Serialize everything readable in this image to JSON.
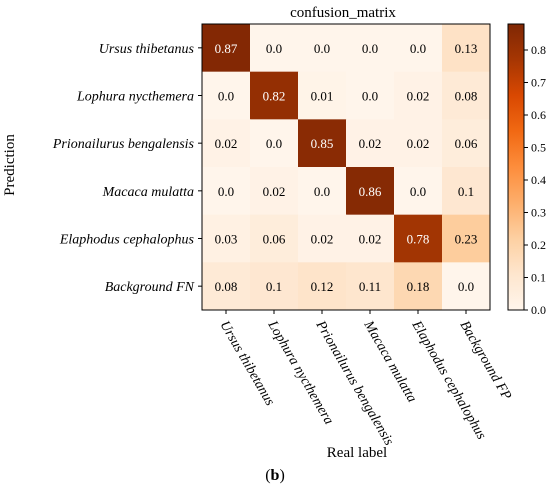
{
  "chart_data": {
    "type": "heatmap",
    "title": "confusion_matrix",
    "xlabel": "Real label",
    "ylabel": "Prediction",
    "x_categories": [
      "Ursus thibetanus",
      "Lophura nycthemera",
      "Prionailurus bengalensis",
      "Macaca mulatta",
      "Elaphodus cephalophus",
      "Background FP"
    ],
    "y_categories": [
      "Ursus thibetanus",
      "Lophura nycthemera",
      "Prionailurus bengalensis",
      "Macaca mulatta",
      "Elaphodus cephalophus",
      "Background FN"
    ],
    "values": [
      [
        "0.87",
        "0.0",
        "0.0",
        "0.0",
        "0.0",
        "0.13"
      ],
      [
        "0.0",
        "0.82",
        "0.01",
        "0.0",
        "0.02",
        "0.08"
      ],
      [
        "0.02",
        "0.0",
        "0.85",
        "0.02",
        "0.02",
        "0.06"
      ],
      [
        "0.0",
        "0.02",
        "0.0",
        "0.86",
        "0.0",
        "0.1"
      ],
      [
        "0.03",
        "0.06",
        "0.02",
        "0.02",
        "0.78",
        "0.23"
      ],
      [
        "0.08",
        "0.1",
        "0.12",
        "0.11",
        "0.18",
        "0.0"
      ]
    ],
    "colorbar": {
      "range": [
        0,
        0.88
      ],
      "ticks": [
        "0.0",
        "0.1",
        "0.2",
        "0.3",
        "0.4",
        "0.5",
        "0.6",
        "0.7",
        "0.8"
      ],
      "colormap": [
        "#fff5eb",
        "#fee6ce",
        "#fdd0a2",
        "#fdae6b",
        "#fd8d3c",
        "#f16913",
        "#d94801",
        "#a63603",
        "#7f2704"
      ]
    },
    "grid": false
  },
  "caption": {
    "open": "(",
    "label": "b",
    "close": ")"
  }
}
